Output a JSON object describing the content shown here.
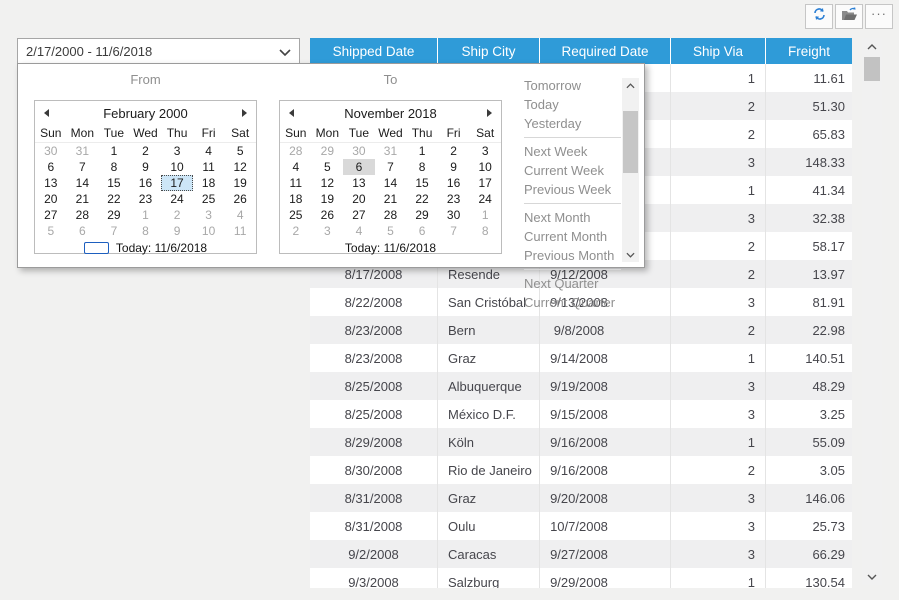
{
  "colors": {
    "header_blue": "#2f9bd8",
    "selection_blue": "#cde6f7",
    "today_gray": "#d9d9d9"
  },
  "toolbar": {
    "buttons": [
      {
        "name": "refresh"
      },
      {
        "name": "open"
      },
      {
        "name": "more",
        "label": "···"
      }
    ]
  },
  "filter": {
    "value": "2/17/2000  - 11/6/2018"
  },
  "popup": {
    "from": {
      "label": "From",
      "title": "February 2000",
      "day_names": [
        "Sun",
        "Mon",
        "Tue",
        "Wed",
        "Thu",
        "Fri",
        "Sat"
      ],
      "weeks": [
        [
          "30*",
          "31*",
          "1",
          "2",
          "3",
          "4",
          "5"
        ],
        [
          "6",
          "7",
          "8",
          "9",
          "10",
          "11",
          "12"
        ],
        [
          "13",
          "14",
          "15",
          "16",
          "17!",
          "18",
          "19"
        ],
        [
          "20",
          "21",
          "22",
          "23",
          "24",
          "25",
          "26"
        ],
        [
          "27",
          "28",
          "29",
          "1*",
          "2*",
          "3*",
          "4*"
        ],
        [
          "5*",
          "6*",
          "7*",
          "8*",
          "9*",
          "10*",
          "11*"
        ]
      ],
      "today_label": "Today: 11/6/2018",
      "show_today_box": true
    },
    "to": {
      "label": "To",
      "title": "November 2018",
      "day_names": [
        "Sun",
        "Mon",
        "Tue",
        "Wed",
        "Thu",
        "Fri",
        "Sat"
      ],
      "weeks": [
        [
          "28*",
          "29*",
          "30*",
          "31*",
          "1",
          "2",
          "3"
        ],
        [
          "4",
          "5",
          "6#",
          "7",
          "8",
          "9",
          "10"
        ],
        [
          "11",
          "12",
          "13",
          "14",
          "15",
          "16",
          "17"
        ],
        [
          "18",
          "19",
          "20",
          "21",
          "22",
          "23",
          "24"
        ],
        [
          "25",
          "26",
          "27",
          "28",
          "29",
          "30",
          "1*"
        ],
        [
          "2*",
          "3*",
          "4*",
          "5*",
          "6*",
          "7*",
          "8*"
        ]
      ],
      "today_label": "Today: 11/6/2018",
      "show_today_box": false
    },
    "quick_groups": [
      [
        "Tomorrow",
        "Today",
        "Yesterday"
      ],
      [
        "Next Week",
        "Current Week",
        "Previous Week"
      ],
      [
        "Next Month",
        "Current Month",
        "Previous Month"
      ],
      [
        "Next Quarter",
        "Current Quarter"
      ]
    ]
  },
  "grid": {
    "columns": [
      "Shipped Date",
      "Ship City",
      "Required Date",
      "Ship Via",
      "Freight"
    ],
    "rows": [
      [
        "",
        "",
        "",
        "1",
        "11.61"
      ],
      [
        "",
        "",
        "",
        "2",
        "51.30"
      ],
      [
        "",
        "",
        "",
        "2",
        "65.83"
      ],
      [
        "",
        "",
        "",
        "3",
        "148.33"
      ],
      [
        "",
        "",
        "",
        "1",
        "41.34"
      ],
      [
        "",
        "",
        "",
        "3",
        "32.38"
      ],
      [
        "",
        "",
        "",
        "2",
        "58.17"
      ],
      [
        "8/17/2008",
        "Resende",
        "9/12/2008",
        "2",
        "13.97"
      ],
      [
        "8/22/2008",
        "San Cristóbal",
        "9/13/2008",
        "3",
        "81.91"
      ],
      [
        "8/23/2008",
        "Bern",
        "9/8/2008",
        "2",
        "22.98"
      ],
      [
        "8/23/2008",
        "Graz",
        "9/14/2008",
        "1",
        "140.51"
      ],
      [
        "8/25/2008",
        "Albuquerque",
        "9/19/2008",
        "3",
        "48.29"
      ],
      [
        "8/25/2008",
        "México D.F.",
        "9/15/2008",
        "3",
        "3.25"
      ],
      [
        "8/29/2008",
        "Köln",
        "9/16/2008",
        "1",
        "55.09"
      ],
      [
        "8/30/2008",
        "Rio de Janeiro",
        "9/16/2008",
        "2",
        "3.05"
      ],
      [
        "8/31/2008",
        "Graz",
        "9/20/2008",
        "3",
        "146.06"
      ],
      [
        "8/31/2008",
        "Oulu",
        "10/7/2008",
        "3",
        "25.73"
      ],
      [
        "9/2/2008",
        "Caracas",
        "9/27/2008",
        "3",
        "66.29"
      ],
      [
        "9/3/2008",
        "Salzburg",
        "9/29/2008",
        "1",
        "130.54"
      ]
    ]
  }
}
